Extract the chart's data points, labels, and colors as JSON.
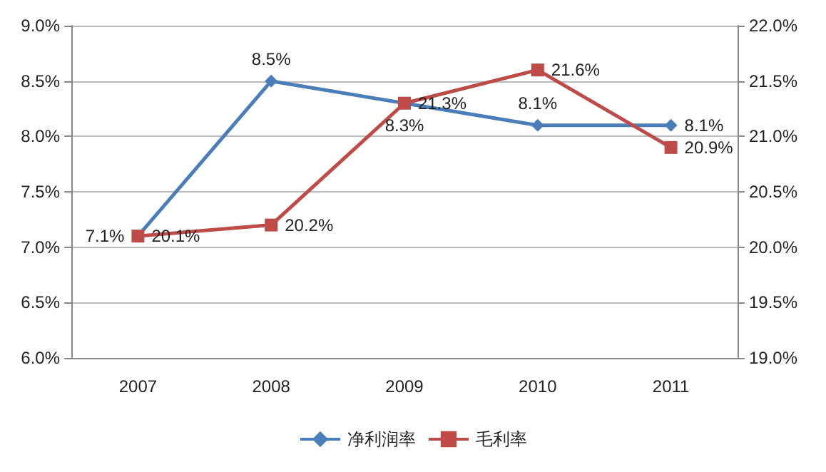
{
  "chart_data": {
    "type": "line",
    "categories": [
      "2007",
      "2008",
      "2009",
      "2010",
      "2011"
    ],
    "series": [
      {
        "name": "净利润率",
        "color": "#4a7ebb",
        "marker": "diamond",
        "values": [
          7.1,
          8.5,
          8.3,
          8.1,
          8.1
        ],
        "value_labels": [
          "7.1%",
          "8.5%",
          "8.3%",
          "8.1%",
          "8.1%"
        ]
      },
      {
        "name": "毛利率",
        "color": "#be4b48",
        "marker": "square",
        "axis": "y2",
        "values": [
          20.1,
          20.2,
          21.3,
          21.6,
          20.9
        ],
        "value_labels": [
          "20.1%",
          "20.2%",
          "21.3%",
          "21.6%",
          "20.9%"
        ]
      }
    ],
    "ylim": [
      6,
      9
    ],
    "yticks": [
      {
        "value": 6,
        "label": "6.0%"
      },
      {
        "value": 6.5,
        "label": "6.5%"
      },
      {
        "value": 7,
        "label": "7.0%"
      },
      {
        "value": 7.5,
        "label": "7.5%"
      },
      {
        "value": 8,
        "label": "8.0%"
      },
      {
        "value": 8.5,
        "label": "8.5%"
      },
      {
        "value": 9,
        "label": "9.0%"
      }
    ],
    "y2lim": [
      19,
      22
    ],
    "y2ticks": [
      {
        "value": 19,
        "label": "19.0%"
      },
      {
        "value": 19.5,
        "label": "19.5%"
      },
      {
        "value": 20,
        "label": "20.0%"
      },
      {
        "value": 20.5,
        "label": "20.5%"
      },
      {
        "value": 21,
        "label": "21.0%"
      },
      {
        "value": 21.5,
        "label": "21.5%"
      },
      {
        "value": 22,
        "label": "22.0%"
      }
    ],
    "grid": "y",
    "legend": "bottom"
  }
}
